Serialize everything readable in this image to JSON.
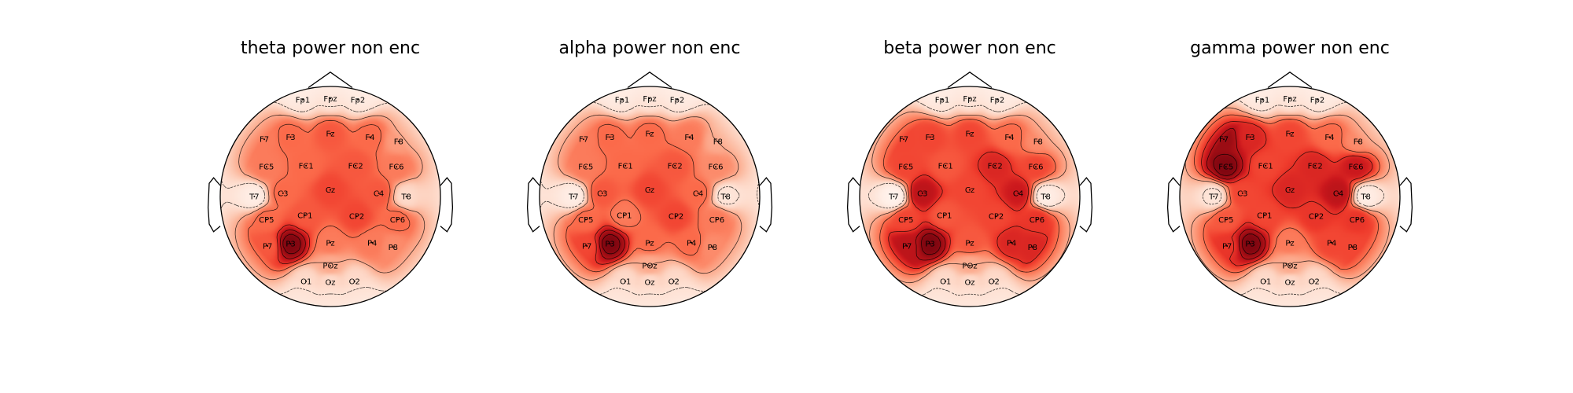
{
  "chart_data": [
    {
      "type": "heatmap",
      "subtype": "scalp-topomap",
      "title": "theta power non enc",
      "colormap": "Reds",
      "colormap_colors": [
        "#fff5f0",
        "#fcbba1",
        "#fb6a4a",
        "#cb181d",
        "#67000d"
      ],
      "colorbar": false,
      "value_range": [
        0,
        1
      ],
      "electrodes": [
        {
          "name": "Fp1",
          "value": 0.1
        },
        {
          "name": "Fpz",
          "value": 0.12
        },
        {
          "name": "Fp2",
          "value": 0.1
        },
        {
          "name": "F7",
          "value": 0.45
        },
        {
          "name": "F3",
          "value": 0.5
        },
        {
          "name": "Fz",
          "value": 0.55
        },
        {
          "name": "F4",
          "value": 0.5
        },
        {
          "name": "F8",
          "value": 0.35
        },
        {
          "name": "FC5",
          "value": 0.45
        },
        {
          "name": "FC1",
          "value": 0.5
        },
        {
          "name": "FC2",
          "value": 0.55
        },
        {
          "name": "FC6",
          "value": 0.45
        },
        {
          "name": "T7",
          "value": 0.05
        },
        {
          "name": "C3",
          "value": 0.5
        },
        {
          "name": "Cz",
          "value": 0.6
        },
        {
          "name": "C4",
          "value": 0.55
        },
        {
          "name": "T8",
          "value": 0.15
        },
        {
          "name": "CP5",
          "value": 0.5
        },
        {
          "name": "CP1",
          "value": 0.55
        },
        {
          "name": "CP2",
          "value": 0.6
        },
        {
          "name": "CP6",
          "value": 0.5
        },
        {
          "name": "P7",
          "value": 0.55
        },
        {
          "name": "P3",
          "value": 0.95
        },
        {
          "name": "Pz",
          "value": 0.45
        },
        {
          "name": "P4",
          "value": 0.45
        },
        {
          "name": "P8",
          "value": 0.4
        },
        {
          "name": "POz",
          "value": 0.3
        },
        {
          "name": "O1",
          "value": 0.15
        },
        {
          "name": "Oz",
          "value": 0.15
        },
        {
          "name": "O2",
          "value": 0.15
        }
      ]
    },
    {
      "type": "heatmap",
      "subtype": "scalp-topomap",
      "title": "alpha power non enc",
      "colormap": "Reds",
      "colormap_colors": [
        "#fff5f0",
        "#fcbba1",
        "#fb6a4a",
        "#cb181d",
        "#67000d"
      ],
      "colorbar": false,
      "value_range": [
        0,
        1
      ],
      "electrodes": [
        {
          "name": "Fp1",
          "value": 0.1
        },
        {
          "name": "Fpz",
          "value": 0.12
        },
        {
          "name": "Fp2",
          "value": 0.1
        },
        {
          "name": "F7",
          "value": 0.45
        },
        {
          "name": "F3",
          "value": 0.5
        },
        {
          "name": "Fz",
          "value": 0.5
        },
        {
          "name": "F4",
          "value": 0.45
        },
        {
          "name": "F8",
          "value": 0.3
        },
        {
          "name": "FC5",
          "value": 0.45
        },
        {
          "name": "FC1",
          "value": 0.5
        },
        {
          "name": "FC2",
          "value": 0.55
        },
        {
          "name": "FC6",
          "value": 0.4
        },
        {
          "name": "T7",
          "value": 0.05
        },
        {
          "name": "C3",
          "value": 0.55
        },
        {
          "name": "Cz",
          "value": 0.6
        },
        {
          "name": "C4",
          "value": 0.5
        },
        {
          "name": "T8",
          "value": 0.1
        },
        {
          "name": "CP5",
          "value": 0.5
        },
        {
          "name": "CP1",
          "value": 0.45
        },
        {
          "name": "CP2",
          "value": 0.6
        },
        {
          "name": "CP6",
          "value": 0.45
        },
        {
          "name": "P7",
          "value": 0.6
        },
        {
          "name": "P3",
          "value": 0.95
        },
        {
          "name": "Pz",
          "value": 0.5
        },
        {
          "name": "P4",
          "value": 0.5
        },
        {
          "name": "P8",
          "value": 0.4
        },
        {
          "name": "POz",
          "value": 0.3
        },
        {
          "name": "O1",
          "value": 0.15
        },
        {
          "name": "Oz",
          "value": 0.15
        },
        {
          "name": "O2",
          "value": 0.15
        }
      ]
    },
    {
      "type": "heatmap",
      "subtype": "scalp-topomap",
      "title": "beta power non enc",
      "colormap": "Reds",
      "colormap_colors": [
        "#fff5f0",
        "#fcbba1",
        "#fb6a4a",
        "#cb181d",
        "#67000d"
      ],
      "colorbar": false,
      "value_range": [
        0,
        1
      ],
      "electrodes": [
        {
          "name": "Fp1",
          "value": 0.1
        },
        {
          "name": "Fpz",
          "value": 0.12
        },
        {
          "name": "Fp2",
          "value": 0.1
        },
        {
          "name": "F7",
          "value": 0.6
        },
        {
          "name": "F3",
          "value": 0.6
        },
        {
          "name": "Fz",
          "value": 0.6
        },
        {
          "name": "F4",
          "value": 0.5
        },
        {
          "name": "F8",
          "value": 0.4
        },
        {
          "name": "FC5",
          "value": 0.6
        },
        {
          "name": "FC1",
          "value": 0.55
        },
        {
          "name": "FC2",
          "value": 0.7
        },
        {
          "name": "FC6",
          "value": 0.6
        },
        {
          "name": "T7",
          "value": 0.02
        },
        {
          "name": "C3",
          "value": 0.8
        },
        {
          "name": "Cz",
          "value": 0.6
        },
        {
          "name": "C4",
          "value": 0.75
        },
        {
          "name": "T8",
          "value": 0.05
        },
        {
          "name": "CP5",
          "value": 0.6
        },
        {
          "name": "CP1",
          "value": 0.55
        },
        {
          "name": "CP2",
          "value": 0.6
        },
        {
          "name": "CP6",
          "value": 0.65
        },
        {
          "name": "P7",
          "value": 0.8
        },
        {
          "name": "P3",
          "value": 0.95
        },
        {
          "name": "Pz",
          "value": 0.55
        },
        {
          "name": "P4",
          "value": 0.7
        },
        {
          "name": "P8",
          "value": 0.7
        },
        {
          "name": "POz",
          "value": 0.3
        },
        {
          "name": "O1",
          "value": 0.15
        },
        {
          "name": "Oz",
          "value": 0.15
        },
        {
          "name": "O2",
          "value": 0.15
        }
      ]
    },
    {
      "type": "heatmap",
      "subtype": "scalp-topomap",
      "title": "gamma power non enc",
      "colormap": "Reds",
      "colormap_colors": [
        "#fff5f0",
        "#fcbba1",
        "#fb6a4a",
        "#cb181d",
        "#67000d"
      ],
      "colorbar": false,
      "value_range": [
        0,
        1
      ],
      "electrodes": [
        {
          "name": "Fp1",
          "value": 0.1
        },
        {
          "name": "Fpz",
          "value": 0.12
        },
        {
          "name": "Fp2",
          "value": 0.1
        },
        {
          "name": "F7",
          "value": 0.9
        },
        {
          "name": "F3",
          "value": 0.7
        },
        {
          "name": "Fz",
          "value": 0.6
        },
        {
          "name": "F4",
          "value": 0.5
        },
        {
          "name": "F8",
          "value": 0.4
        },
        {
          "name": "FC5",
          "value": 0.95
        },
        {
          "name": "FC1",
          "value": 0.6
        },
        {
          "name": "FC2",
          "value": 0.7
        },
        {
          "name": "FC6",
          "value": 0.75
        },
        {
          "name": "T7",
          "value": 0.1
        },
        {
          "name": "C3",
          "value": 0.6
        },
        {
          "name": "Cz",
          "value": 0.7
        },
        {
          "name": "C4",
          "value": 0.8
        },
        {
          "name": "T8",
          "value": 0.05
        },
        {
          "name": "CP5",
          "value": 0.55
        },
        {
          "name": "CP1",
          "value": 0.6
        },
        {
          "name": "CP2",
          "value": 0.65
        },
        {
          "name": "CP6",
          "value": 0.65
        },
        {
          "name": "P7",
          "value": 0.65
        },
        {
          "name": "P3",
          "value": 0.95
        },
        {
          "name": "Pz",
          "value": 0.45
        },
        {
          "name": "P4",
          "value": 0.6
        },
        {
          "name": "P8",
          "value": 0.6
        },
        {
          "name": "POz",
          "value": 0.3
        },
        {
          "name": "O1",
          "value": 0.15
        },
        {
          "name": "Oz",
          "value": 0.15
        },
        {
          "name": "O2",
          "value": 0.15
        }
      ]
    }
  ]
}
